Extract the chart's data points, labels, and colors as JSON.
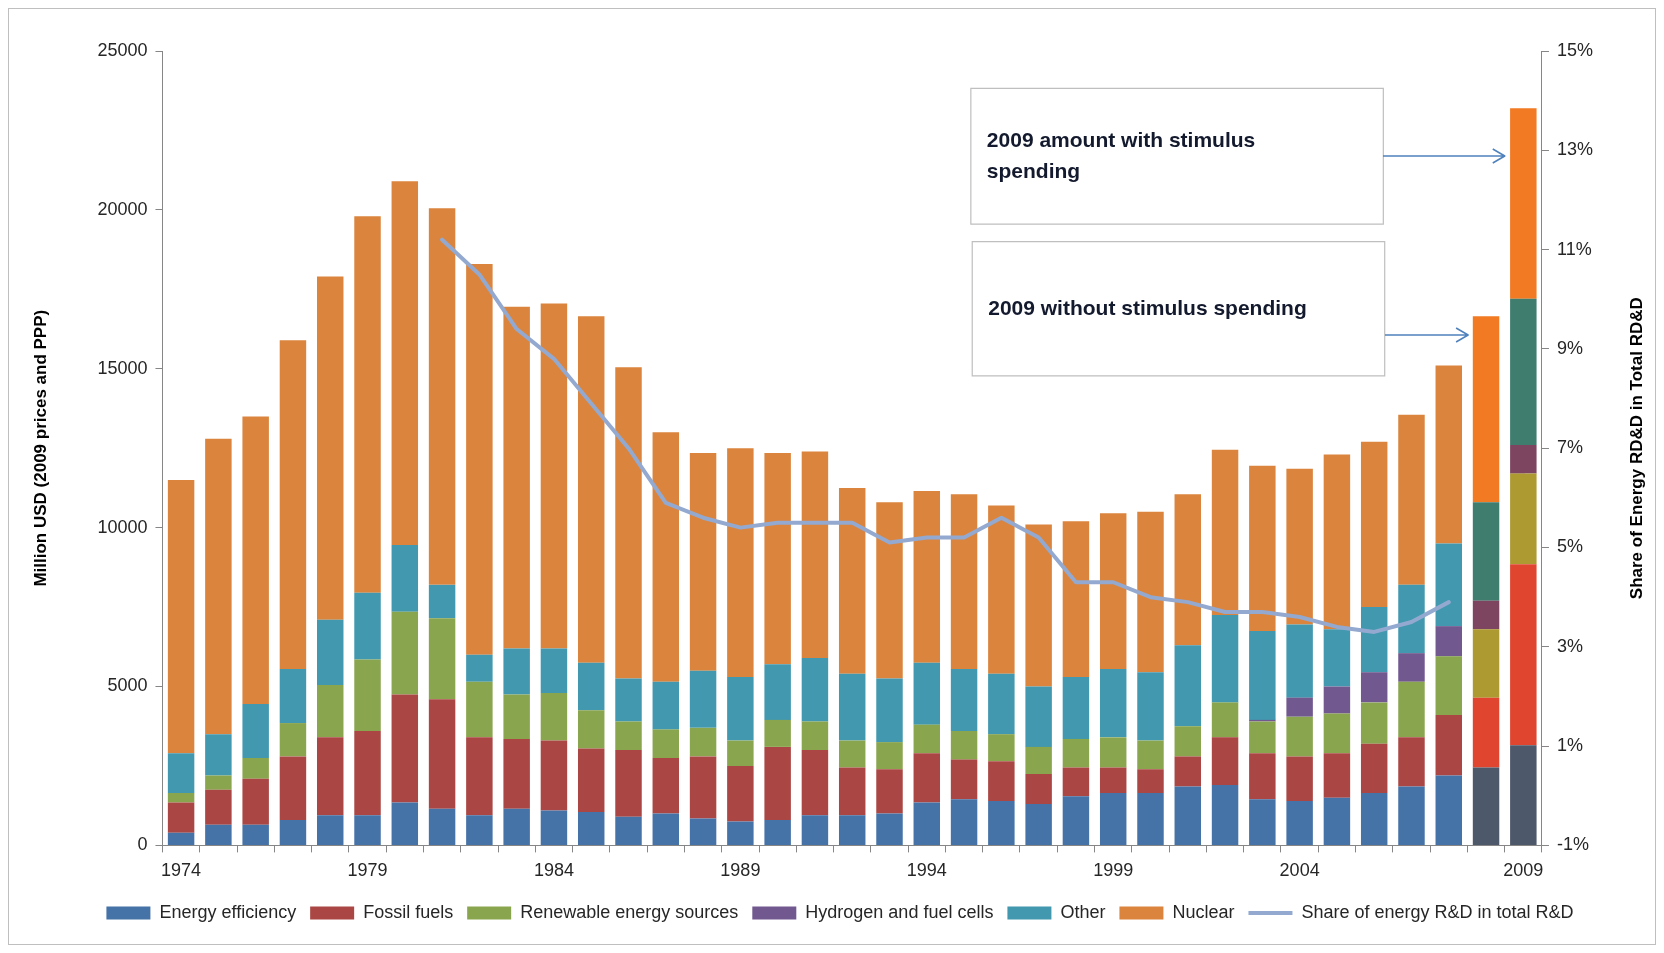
{
  "chart_data": {
    "type": "bar",
    "stacked": true,
    "categories": [
      "1974",
      null,
      null,
      null,
      null,
      "1979",
      null,
      null,
      null,
      null,
      "1984",
      null,
      null,
      null,
      null,
      "1989",
      null,
      null,
      null,
      null,
      "1994",
      null,
      null,
      null,
      null,
      "1999",
      null,
      null,
      null,
      null,
      "2004",
      null,
      null,
      null,
      null,
      null,
      "2009"
    ],
    "ylabel": "Million USD (2009 prices and PPP)",
    "y2label": "Share of Energy RD&D in Total RD&D",
    "ylim": [
      0,
      25000
    ],
    "yticks": [
      0,
      5000,
      10000,
      15000,
      20000,
      25000
    ],
    "y2lim": [
      -1,
      15
    ],
    "y2ticks": [
      {
        "value": -1,
        "label": "-1%"
      },
      {
        "value": 1,
        "label": "1%"
      },
      {
        "value": 3,
        "label": "3%"
      },
      {
        "value": 5,
        "label": "5%"
      },
      {
        "value": 7,
        "label": "7%"
      },
      {
        "value": 9,
        "label": "9%"
      },
      {
        "value": 11,
        "label": "11%"
      },
      {
        "value": 13,
        "label": "13%"
      },
      {
        "value": 15,
        "label": "15%"
      }
    ],
    "legend": "bottom",
    "annotations": [
      "2009 amount with stimulus spending",
      "2009 without stimulus spending"
    ],
    "series": [
      {
        "name": "Energy efficiency",
        "color": "#4572a7",
        "colors": [
          "#4572a7",
          "#4572a7",
          "#4572a7",
          "#4572a7",
          "#4572a7",
          "#4572a7",
          "#4572a7",
          "#4572a7",
          "#4572a7",
          "#4572a7",
          "#4572a7",
          "#4572a7",
          "#4572a7",
          "#4572a7",
          "#4572a7",
          "#4572a7",
          "#4572a7",
          "#4572a7",
          "#4572a7",
          "#4572a7",
          "#4572a7",
          "#4572a7",
          "#4572a7",
          "#4572a7",
          "#4572a7",
          "#4572a7",
          "#4572a7",
          "#4572a7",
          "#4572a7",
          "#4572a7",
          "#4572a7",
          "#4572a7",
          "#4572a7",
          "#4572a7",
          "#4572a7",
          "#4d586b",
          "#4d586b"
        ],
        "values": [
          400,
          650,
          650,
          800,
          950,
          950,
          1350,
          1150,
          950,
          1150,
          1100,
          1050,
          900,
          1000,
          850,
          750,
          800,
          950,
          950,
          1000,
          1350,
          1450,
          1400,
          1300,
          1550,
          1650,
          1650,
          1850,
          1900,
          1450,
          1400,
          1500,
          1650,
          1850,
          2200,
          2450,
          3150
        ]
      },
      {
        "name": "Fossil fuels",
        "color": "#aa4643",
        "colors": [
          "#aa4643",
          "#aa4643",
          "#aa4643",
          "#aa4643",
          "#aa4643",
          "#aa4643",
          "#aa4643",
          "#aa4643",
          "#aa4643",
          "#aa4643",
          "#aa4643",
          "#aa4643",
          "#aa4643",
          "#aa4643",
          "#aa4643",
          "#aa4643",
          "#aa4643",
          "#aa4643",
          "#aa4643",
          "#aa4643",
          "#aa4643",
          "#aa4643",
          "#aa4643",
          "#aa4643",
          "#aa4643",
          "#aa4643",
          "#aa4643",
          "#aa4643",
          "#aa4643",
          "#aa4643",
          "#aa4643",
          "#aa4643",
          "#aa4643",
          "#aa4643",
          "#aa4643",
          "#e04530",
          "#e04530"
        ],
        "values": [
          950,
          1100,
          1450,
          2000,
          2450,
          2650,
          3400,
          3450,
          2450,
          2200,
          2200,
          2000,
          2100,
          1750,
          1950,
          1750,
          2300,
          2050,
          1500,
          1400,
          1550,
          1250,
          1250,
          950,
          900,
          800,
          750,
          950,
          1500,
          1450,
          1400,
          1400,
          1550,
          1550,
          1900,
          2200,
          5700
        ]
      },
      {
        "name": "Renewable energy sources",
        "color": "#89a54e",
        "colors": [
          "#89a54e",
          "#89a54e",
          "#89a54e",
          "#89a54e",
          "#89a54e",
          "#89a54e",
          "#89a54e",
          "#89a54e",
          "#89a54e",
          "#89a54e",
          "#89a54e",
          "#89a54e",
          "#89a54e",
          "#89a54e",
          "#89a54e",
          "#89a54e",
          "#89a54e",
          "#89a54e",
          "#89a54e",
          "#89a54e",
          "#89a54e",
          "#89a54e",
          "#89a54e",
          "#89a54e",
          "#89a54e",
          "#89a54e",
          "#89a54e",
          "#89a54e",
          "#89a54e",
          "#89a54e",
          "#89a54e",
          "#89a54e",
          "#89a54e",
          "#89a54e",
          "#89a54e",
          "#ad9b32",
          "#ad9b32"
        ],
        "values": [
          300,
          450,
          650,
          1050,
          1650,
          2250,
          2600,
          2550,
          1750,
          1400,
          1500,
          1200,
          900,
          900,
          900,
          800,
          850,
          900,
          850,
          850,
          900,
          900,
          850,
          850,
          900,
          950,
          900,
          950,
          1100,
          1000,
          1250,
          1250,
          1300,
          1750,
          1850,
          2150,
          2850
        ]
      },
      {
        "name": "Hydrogen and fuel cells",
        "color": "#71588f",
        "colors": [
          "#71588f",
          "#71588f",
          "#71588f",
          "#71588f",
          "#71588f",
          "#71588f",
          "#71588f",
          "#71588f",
          "#71588f",
          "#71588f",
          "#71588f",
          "#71588f",
          "#71588f",
          "#71588f",
          "#71588f",
          "#71588f",
          "#71588f",
          "#71588f",
          "#71588f",
          "#71588f",
          "#71588f",
          "#71588f",
          "#71588f",
          "#71588f",
          "#71588f",
          "#71588f",
          "#71588f",
          "#71588f",
          "#71588f",
          "#71588f",
          "#71588f",
          "#71588f",
          "#71588f",
          "#71588f",
          "#71588f",
          "#7d4560",
          "#7d4560"
        ],
        "values": [
          null,
          null,
          null,
          null,
          null,
          null,
          null,
          null,
          null,
          null,
          null,
          null,
          null,
          null,
          null,
          null,
          null,
          null,
          null,
          null,
          null,
          null,
          null,
          null,
          null,
          null,
          null,
          null,
          null,
          50,
          600,
          850,
          950,
          900,
          950,
          900,
          900
        ]
      },
      {
        "name": "Other",
        "color": "#4198af",
        "colors": [
          "#4198af",
          "#4198af",
          "#4198af",
          "#4198af",
          "#4198af",
          "#4198af",
          "#4198af",
          "#4198af",
          "#4198af",
          "#4198af",
          "#4198af",
          "#4198af",
          "#4198af",
          "#4198af",
          "#4198af",
          "#4198af",
          "#4198af",
          "#4198af",
          "#4198af",
          "#4198af",
          "#4198af",
          "#4198af",
          "#4198af",
          "#4198af",
          "#4198af",
          "#4198af",
          "#4198af",
          "#4198af",
          "#4198af",
          "#4198af",
          "#4198af",
          "#4198af",
          "#4198af",
          "#4198af",
          "#4198af",
          "#3f7d6f",
          "#3f7d6f"
        ],
        "values": [
          1250,
          1300,
          1700,
          1700,
          2050,
          2100,
          2100,
          1050,
          850,
          1450,
          1400,
          1500,
          1350,
          1500,
          1800,
          2000,
          1750,
          2000,
          2100,
          2000,
          1950,
          1950,
          1900,
          1900,
          1950,
          2150,
          2150,
          2550,
          2750,
          2800,
          2300,
          1800,
          2050,
          2150,
          2600,
          3100,
          4600
        ]
      },
      {
        "name": "Nuclear",
        "color": "#db843d",
        "colors": [
          "#db843d",
          "#db843d",
          "#db843d",
          "#db843d",
          "#db843d",
          "#db843d",
          "#db843d",
          "#db843d",
          "#db843d",
          "#db843d",
          "#db843d",
          "#db843d",
          "#db843d",
          "#db843d",
          "#db843d",
          "#db843d",
          "#db843d",
          "#db843d",
          "#db843d",
          "#db843d",
          "#db843d",
          "#db843d",
          "#db843d",
          "#db843d",
          "#db843d",
          "#db843d",
          "#db843d",
          "#db843d",
          "#db843d",
          "#db843d",
          "#db843d",
          "#db843d",
          "#db843d",
          "#db843d",
          "#db843d",
          "#f27a22",
          "#f27a22"
        ],
        "values": [
          8600,
          9300,
          9050,
          10350,
          10800,
          11850,
          11450,
          11850,
          12300,
          10750,
          10850,
          10900,
          9800,
          7850,
          6850,
          7200,
          6650,
          6500,
          5850,
          5550,
          5400,
          5500,
          5300,
          5100,
          4900,
          4900,
          5050,
          4750,
          5200,
          5200,
          4900,
          5500,
          5200,
          5350,
          5600,
          5850,
          6000
        ]
      },
      {
        "name": "Share of energy R&D in total R&D",
        "type": "line",
        "axis": "y2",
        "marker": "none",
        "color": "#93a9cf",
        "values": [
          null,
          null,
          null,
          null,
          null,
          null,
          null,
          11.2,
          10.5,
          9.4,
          8.8,
          7.9,
          7.0,
          5.9,
          5.6,
          5.4,
          5.5,
          5.5,
          5.5,
          5.1,
          5.2,
          5.2,
          5.6,
          5.2,
          4.3,
          4.3,
          4.0,
          3.9,
          3.7,
          3.7,
          3.6,
          3.4,
          3.3,
          3.5,
          3.9,
          null,
          null
        ]
      }
    ]
  }
}
